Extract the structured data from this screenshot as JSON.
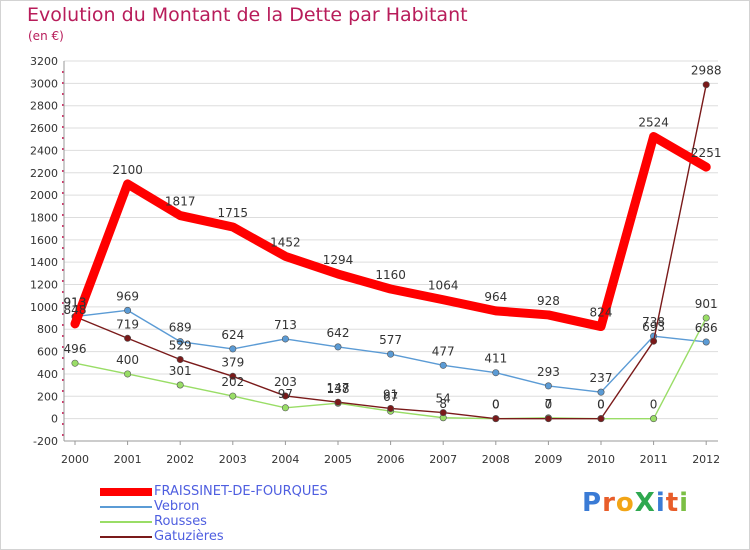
{
  "title": "Evolution du Montant de la Dette par Habitant",
  "subtitle": "(en €)",
  "logo": "ProXiti",
  "chart_data": {
    "type": "line",
    "x": [
      "2000",
      "2001",
      "2002",
      "2003",
      "2004",
      "2005",
      "2006",
      "2007",
      "2008",
      "2009",
      "2010",
      "2011",
      "2012"
    ],
    "ylim": [
      -200,
      3200
    ],
    "yticks": [
      -200,
      0,
      200,
      400,
      600,
      800,
      1000,
      1200,
      1400,
      1600,
      1800,
      2000,
      2200,
      2400,
      2600,
      2800,
      3000,
      3200
    ],
    "grid": true,
    "legend_placement": "bottom-left",
    "series": [
      {
        "name": "FRAISSINET-DE-FOURQUES",
        "color": "#ff0000",
        "values": [
          848,
          2100,
          1817,
          1715,
          1452,
          1294,
          1160,
          1064,
          964,
          928,
          824,
          2524,
          2251
        ]
      },
      {
        "name": "Vebron",
        "color": "#5b9bd5",
        "values": [
          913,
          969,
          689,
          624,
          713,
          642,
          577,
          477,
          411,
          293,
          237,
          738,
          686
        ]
      },
      {
        "name": "Rousses",
        "color": "#99dd66",
        "values": [
          496,
          400,
          301,
          202,
          97,
          138,
          67,
          8,
          0,
          7,
          0,
          0,
          901
        ]
      },
      {
        "name": "Gatuzières",
        "color": "#7a1a1a",
        "values": [
          913,
          719,
          529,
          379,
          203,
          147,
          91,
          54,
          0,
          0,
          0,
          693,
          2988
        ]
      }
    ],
    "labels": [
      [
        "848",
        "2100",
        "1817",
        "1715",
        "1452",
        "1294",
        "1160",
        "1064",
        "964",
        "928",
        "824",
        "2524",
        "2251"
      ],
      [
        "913",
        "969",
        "689",
        "624",
        "713",
        "642",
        "577",
        "477",
        "411",
        "293",
        "237",
        "738",
        "686"
      ],
      [
        "496",
        "400",
        "301",
        "202",
        "97",
        "138",
        "67",
        "8",
        "0",
        "7",
        "0",
        "0",
        "901"
      ],
      [
        "913",
        "719",
        "529",
        "379",
        "203",
        "147",
        "91",
        "54",
        "0",
        "0",
        "0",
        "693",
        "2988"
      ]
    ]
  }
}
